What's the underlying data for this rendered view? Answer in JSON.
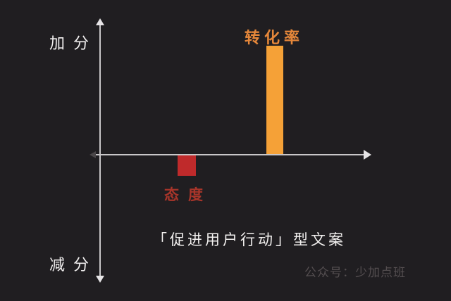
{
  "chart_data": {
    "type": "bar",
    "title": "「促进用户行动」型文案",
    "categories": [
      "态度",
      "转化率"
    ],
    "values": [
      -16,
      82
    ],
    "value_note": "relative score estimated from bar pixel heights, scale -100..100",
    "ylim": [
      -100,
      100
    ],
    "y_axis_top_label": "加分",
    "y_axis_bottom_label": "减分",
    "xlabel": "",
    "ylabel": "",
    "grid": false,
    "legend": false,
    "bar_colors": [
      "#BF2A2B",
      "#F5A137"
    ],
    "label_colors": [
      "#A8352A",
      "#E5873A"
    ],
    "axis_color": "#C9C7C9",
    "background_color": "#201E21"
  },
  "watermark": {
    "text": "公众号：少加点班",
    "color": "#544E50"
  }
}
